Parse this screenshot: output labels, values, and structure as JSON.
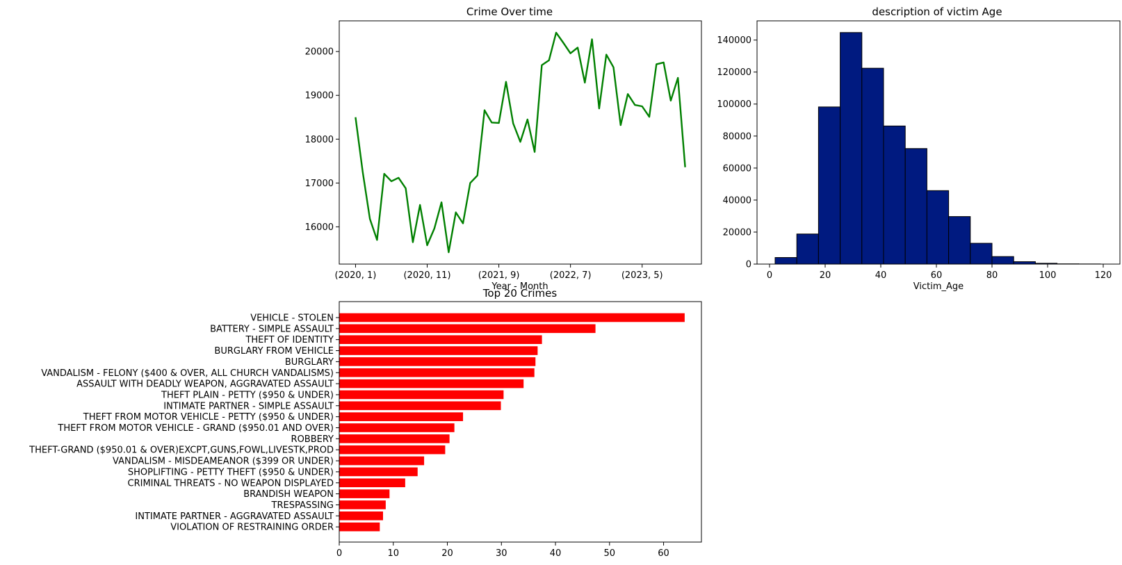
{
  "chart_data": [
    {
      "type": "line",
      "title": "Crime Over time",
      "xlabel": "Year - Month",
      "ylabel": "",
      "x_tick_labels": [
        "(2020, 1)",
        "(2020, 11)",
        "(2021, 9)",
        "(2022, 7)",
        "(2023, 5)"
      ],
      "y_ticks": [
        16000,
        17000,
        18000,
        19000,
        20000
      ],
      "ylim": [
        15150,
        20700
      ],
      "color": "#008000",
      "grid": false,
      "series": [
        {
          "values": [
            18500,
            17250,
            16180,
            15700,
            17210,
            17040,
            17120,
            16880,
            15650,
            16500,
            15580,
            15960,
            16560,
            15420,
            16330,
            16080,
            17000,
            17170,
            18660,
            18380,
            18370,
            19310,
            18360,
            17940,
            18450,
            17710,
            19690,
            19800,
            20430,
            20200,
            19960,
            20090,
            19290,
            20280,
            18700,
            19930,
            19640,
            18320,
            19030,
            18780,
            18750,
            18510,
            19710,
            19750,
            18880,
            19400,
            17360
          ]
        }
      ]
    },
    {
      "type": "histogram",
      "title": "description of victim Age",
      "xlabel": "Victim_Age",
      "ylabel": "",
      "x_ticks": [
        0,
        20,
        40,
        60,
        80,
        100,
        120
      ],
      "y_ticks": [
        0,
        20000,
        40000,
        60000,
        80000,
        100000,
        120000,
        140000
      ],
      "xlim": [
        -4.5,
        126
      ],
      "ylim": [
        0,
        152000
      ],
      "bar_color": "#001a80",
      "edge_color": "#000000",
      "bins": [
        2,
        9.8,
        17.6,
        25.4,
        33.2,
        41,
        48.8,
        56.6,
        64.4,
        72.2,
        80,
        87.8,
        95.6,
        103.4,
        111.2,
        119
      ],
      "values": [
        4100,
        18800,
        98200,
        144700,
        122400,
        86300,
        72200,
        45900,
        29700,
        13000,
        4700,
        1500,
        500,
        150,
        80
      ]
    },
    {
      "type": "bar",
      "orientation": "horizontal",
      "title": "Top 20 Crimes",
      "xlabel": "",
      "ylabel": "",
      "x_ticks": [
        0,
        10,
        20,
        30,
        40,
        50,
        60
      ],
      "xlim": [
        0,
        67
      ],
      "color": "#ff0000",
      "categories": [
        "VEHICLE - STOLEN",
        "BATTERY - SIMPLE ASSAULT",
        "THEFT OF IDENTITY",
        "BURGLARY FROM VEHICLE",
        "BURGLARY",
        "VANDALISM - FELONY ($400 & OVER, ALL CHURCH VANDALISMS)",
        "ASSAULT WITH DEADLY WEAPON, AGGRAVATED ASSAULT",
        "THEFT PLAIN - PETTY ($950 & UNDER)",
        "INTIMATE PARTNER - SIMPLE ASSAULT",
        "THEFT FROM MOTOR VEHICLE - PETTY ($950 & UNDER)",
        "THEFT FROM MOTOR VEHICLE - GRAND ($950.01 AND OVER)",
        "ROBBERY",
        "THEFT-GRAND ($950.01 & OVER)EXCPT,GUNS,FOWL,LIVESTK,PROD",
        "VANDALISM - MISDEAMEANOR ($399 OR UNDER)",
        "SHOPLIFTING - PETTY THEFT ($950 & UNDER)",
        "CRIMINAL THREATS - NO WEAPON DISPLAYED",
        "BRANDISH WEAPON",
        "TRESPASSING",
        "INTIMATE PARTNER - AGGRAVATED ASSAULT",
        "VIOLATION OF RESTRAINING ORDER"
      ],
      "values": [
        63.9,
        47.4,
        37.5,
        36.7,
        36.3,
        36.1,
        34.1,
        30.4,
        29.9,
        22.9,
        21.3,
        20.4,
        19.6,
        15.7,
        14.5,
        12.2,
        9.3,
        8.6,
        8.1,
        7.5
      ]
    }
  ]
}
